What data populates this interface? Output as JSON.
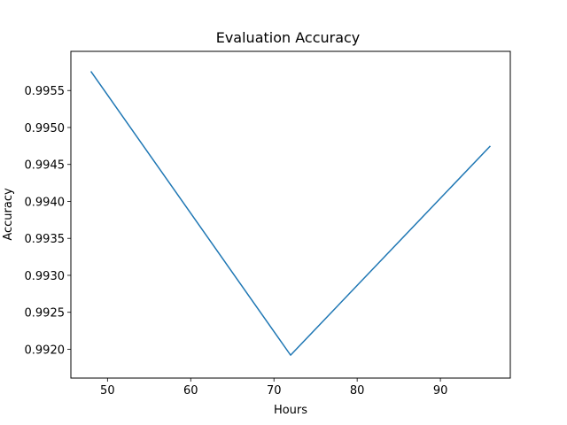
{
  "chart_data": {
    "type": "line",
    "title": "Evaluation Accuracy",
    "xlabel": "Hours",
    "ylabel": "Accuracy",
    "xlim": [
      45.6,
      98.4
    ],
    "ylim": [
      0.99161,
      0.99603
    ],
    "xticks": [
      50,
      60,
      70,
      80,
      90
    ],
    "xtick_labels": [
      "50",
      "60",
      "70",
      "80",
      "90"
    ],
    "yticks": [
      0.992,
      0.9925,
      0.993,
      0.9935,
      0.994,
      0.9945,
      0.995,
      0.9955
    ],
    "ytick_labels": [
      "0.9920",
      "0.9925",
      "0.9930",
      "0.9935",
      "0.9940",
      "0.9945",
      "0.9950",
      "0.9955"
    ],
    "grid": false,
    "series": [
      {
        "color": "#1f77b4",
        "x": [
          48,
          72,
          96
        ],
        "y": [
          0.99576,
          0.99192,
          0.99475
        ]
      }
    ]
  }
}
